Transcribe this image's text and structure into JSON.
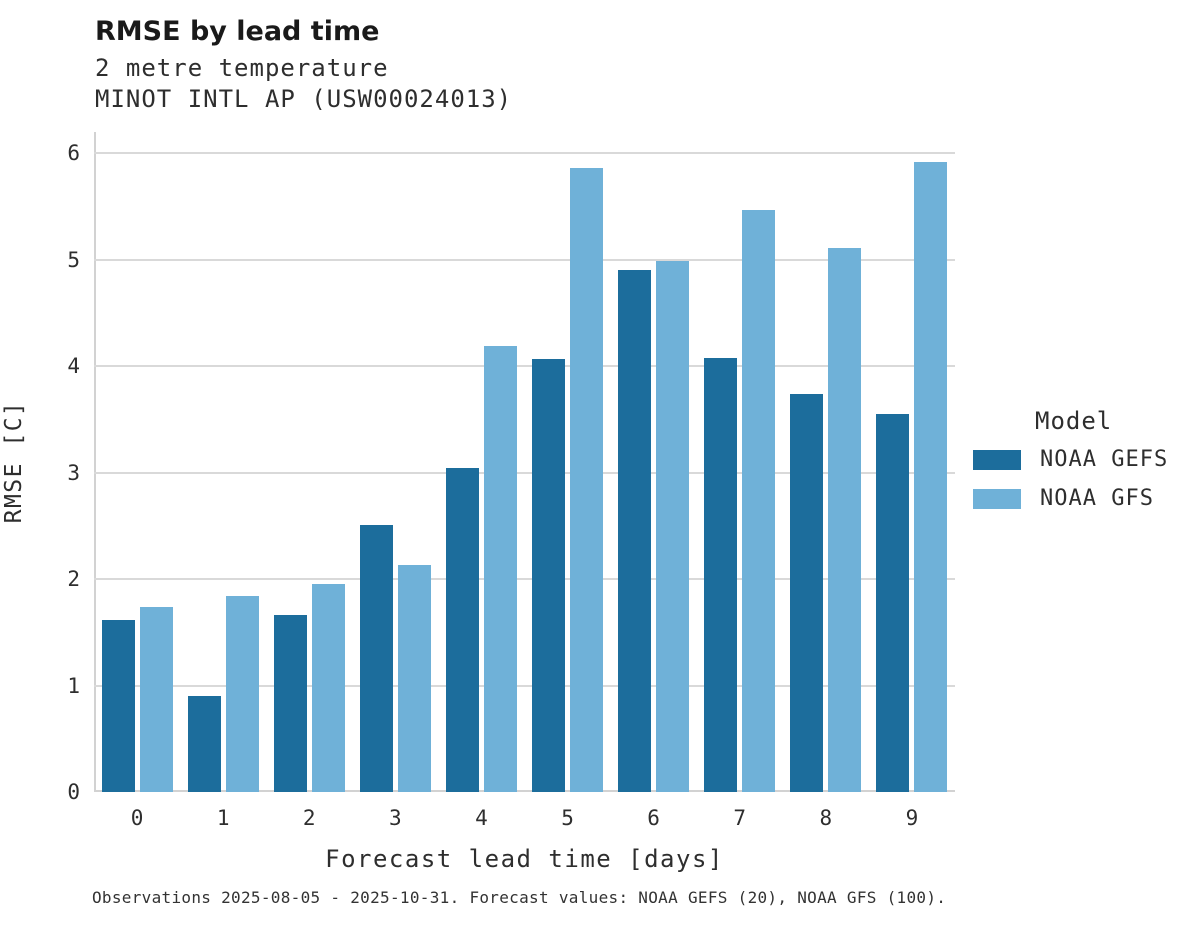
{
  "header": {
    "title": "RMSE by lead time",
    "subtitle_variable": "2 metre temperature",
    "subtitle_station": "MINOT INTL AP (USW00024013)"
  },
  "legend": {
    "title": "Model",
    "entries": [
      {
        "label": "NOAA GEFS",
        "color": "#1c6d9c"
      },
      {
        "label": "NOAA GFS",
        "color": "#6fb1d8"
      }
    ]
  },
  "caption": "Observations 2025-08-05 - 2025-10-31. Forecast values: NOAA GEFS (20), NOAA GFS (100).",
  "chart_data": {
    "type": "bar",
    "title": "RMSE by lead time",
    "subtitle": "2 metre temperature — MINOT INTL AP (USW00024013)",
    "xlabel": "Forecast lead time [days]",
    "ylabel": "RMSE [C]",
    "categories": [
      "0",
      "1",
      "2",
      "3",
      "4",
      "5",
      "6",
      "7",
      "8",
      "9"
    ],
    "series": [
      {
        "name": "NOAA GEFS",
        "color": "#1c6d9c",
        "values": [
          1.62,
          0.9,
          1.66,
          2.51,
          3.04,
          4.07,
          4.9,
          4.08,
          3.74,
          3.55
        ]
      },
      {
        "name": "NOAA GFS",
        "color": "#6fb1d8",
        "values": [
          1.74,
          1.84,
          1.95,
          2.13,
          4.19,
          5.86,
          4.99,
          5.47,
          5.11,
          5.92
        ]
      }
    ],
    "ylim": [
      0,
      6.2
    ],
    "yticks": [
      0,
      1,
      2,
      3,
      4,
      5,
      6
    ],
    "grid": true,
    "legend_position": "right",
    "colors": {
      "grid": "#d9d9d9",
      "spine": "#d2d2d2",
      "background": "#ffffff"
    }
  }
}
